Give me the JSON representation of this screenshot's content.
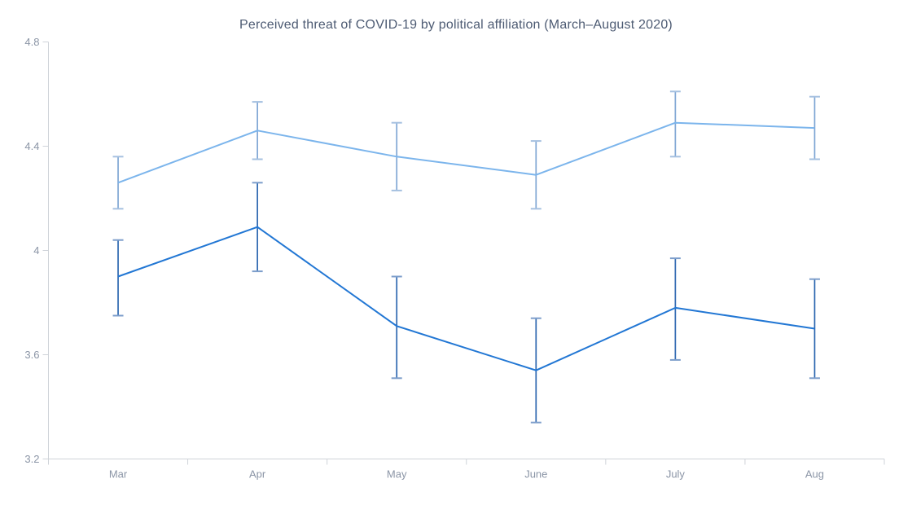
{
  "chart_data": {
    "type": "line",
    "title": "Perceived threat of COVID-19 by political affiliation (March–August 2020)",
    "categories": [
      "Mar",
      "Apr",
      "May",
      "June",
      "July",
      "Aug"
    ],
    "series": [
      {
        "name": "upper-series-light-blue",
        "color": "#7cb5ec",
        "whisker_color": "#7fa6d4",
        "cap_color": "#a6c1e0",
        "values": [
          4.26,
          4.46,
          4.36,
          4.29,
          4.49,
          4.47
        ],
        "ci_low": [
          4.16,
          4.35,
          4.23,
          4.16,
          4.36,
          4.35
        ],
        "ci_high": [
          4.36,
          4.57,
          4.49,
          4.42,
          4.61,
          4.59
        ]
      },
      {
        "name": "lower-series-dark-blue",
        "color": "#2277d4",
        "whisker_color": "#2d67b0",
        "cap_color": "#7d9ecb",
        "values": [
          3.9,
          4.09,
          3.71,
          3.54,
          3.78,
          3.7
        ],
        "ci_low": [
          3.75,
          3.92,
          3.51,
          3.34,
          3.58,
          3.51
        ],
        "ci_high": [
          4.04,
          4.26,
          3.9,
          3.74,
          3.97,
          3.89
        ]
      }
    ],
    "xlabel": "",
    "ylabel": "",
    "ylim": [
      3.2,
      4.8
    ],
    "yticks": [
      3.2,
      3.6,
      4,
      4.4,
      4.8
    ],
    "grid": false,
    "legend_position": "none",
    "error_bars": true
  },
  "axis_style": {
    "axis_color": "#cfd3d9",
    "label_color": "#8b95a6",
    "title_color": "#4d5b73"
  }
}
